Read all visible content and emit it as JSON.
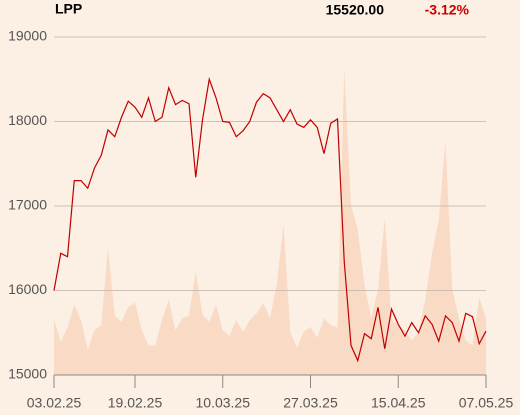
{
  "chart_data": {
    "type": "line",
    "title": "LPP",
    "price": "15520.00",
    "change": "-3.12%",
    "change_color": "#cc0000",
    "categories": [
      "03.02.25",
      null,
      null,
      null,
      null,
      null,
      null,
      null,
      null,
      null,
      null,
      null,
      "19.02.25",
      null,
      null,
      null,
      null,
      null,
      null,
      null,
      null,
      null,
      null,
      null,
      null,
      "10.03.25",
      null,
      null,
      null,
      null,
      null,
      null,
      null,
      null,
      null,
      null,
      null,
      null,
      "27.03.25",
      null,
      null,
      null,
      null,
      null,
      null,
      null,
      null,
      null,
      null,
      null,
      null,
      "15.04.25",
      null,
      null,
      null,
      null,
      null,
      null,
      null,
      null,
      null,
      null,
      null,
      null,
      "07.05.25"
    ],
    "series": [
      {
        "color": "#c00000",
        "values": [
          16000,
          16440,
          16400,
          17300,
          17300,
          17210,
          17450,
          17600,
          17900,
          17820,
          18050,
          18240,
          18170,
          18050,
          18280,
          18000,
          18050,
          18400,
          18200,
          18250,
          18210,
          17340,
          18020,
          18500,
          18280,
          18000,
          17990,
          17820,
          17890,
          18000,
          18230,
          18330,
          18280,
          18140,
          18000,
          18140,
          17970,
          17930,
          18020,
          17930,
          17620,
          17980,
          18030,
          16340,
          15350,
          15170,
          15490,
          15430,
          15800,
          15310,
          15780,
          15600,
          15460,
          15620,
          15500,
          15700,
          15600,
          15400,
          15700,
          15620,
          15400,
          15730,
          15690,
          15370,
          15520
        ]
      },
      {
        "color": "#f9dac5",
        "fill": true,
        "values": [
          15650,
          15390,
          15560,
          15830,
          15650,
          15300,
          15530,
          15590,
          16500,
          15700,
          15630,
          15800,
          15860,
          15530,
          15350,
          15350,
          15650,
          15890,
          15530,
          15670,
          15700,
          16220,
          15710,
          15630,
          15830,
          15530,
          15460,
          15650,
          15510,
          15650,
          15730,
          15850,
          15670,
          16070,
          16780,
          15510,
          15320,
          15510,
          15570,
          15440,
          15670,
          15590,
          15560,
          18610,
          17010,
          16720,
          16070,
          15670,
          16010,
          16860,
          15650,
          15590,
          15530,
          15410,
          15510,
          15890,
          16440,
          16830,
          17760,
          16010,
          15670,
          15410,
          15350,
          15910,
          15670
        ]
      }
    ],
    "ylim": [
      15000,
      19000
    ],
    "yticks": [
      15000,
      16000,
      17000,
      18000,
      19000
    ],
    "grid": true
  }
}
